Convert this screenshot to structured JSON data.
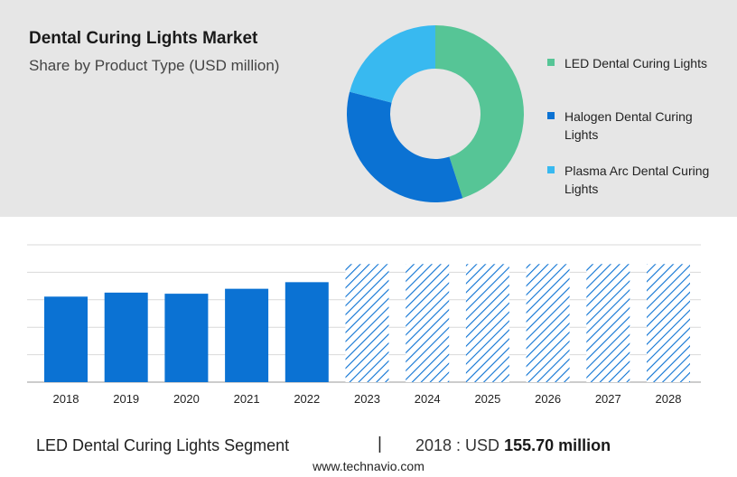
{
  "header": {
    "title": "Dental Curing Lights Market",
    "subtitle": "Share by Product Type (USD million)"
  },
  "footer": {
    "segment_label": "LED Dental Curing Lights Segment",
    "separator": "|",
    "year_prefix": "2018 : USD ",
    "value_text": "155.70 million",
    "site": "www.technavio.com"
  },
  "colors": {
    "led": "#56c596",
    "halogen": "#0b72d3",
    "plasma": "#38b9f0",
    "panel_bg": "#e6e6e6",
    "bar": "#0b72d3",
    "forecast_hatch": "#0b72d3"
  },
  "chart_data": [
    {
      "type": "pie",
      "style": "donut",
      "title": "Share by Product Type (USD million)",
      "legend_position": "right",
      "slices": [
        {
          "label": "LED Dental Curing Lights",
          "value": 45,
          "color": "#56c596"
        },
        {
          "label": "Halogen Dental Curing Lights",
          "value": 34,
          "color": "#0b72d3"
        },
        {
          "label": "Plasma Arc Dental Curing Lights",
          "value": 21,
          "color": "#38b9f0"
        }
      ]
    },
    {
      "type": "bar",
      "categories": [
        "2018",
        "2019",
        "2020",
        "2021",
        "2022",
        "2023",
        "2024",
        "2025",
        "2026",
        "2027",
        "2028"
      ],
      "values": [
        155.7,
        163,
        161,
        170,
        182,
        215,
        215,
        215,
        215,
        215,
        215
      ],
      "forecast_from_index": 5,
      "ylim": [
        0,
        250
      ],
      "grid": true,
      "xlabel": "",
      "ylabel": ""
    }
  ]
}
